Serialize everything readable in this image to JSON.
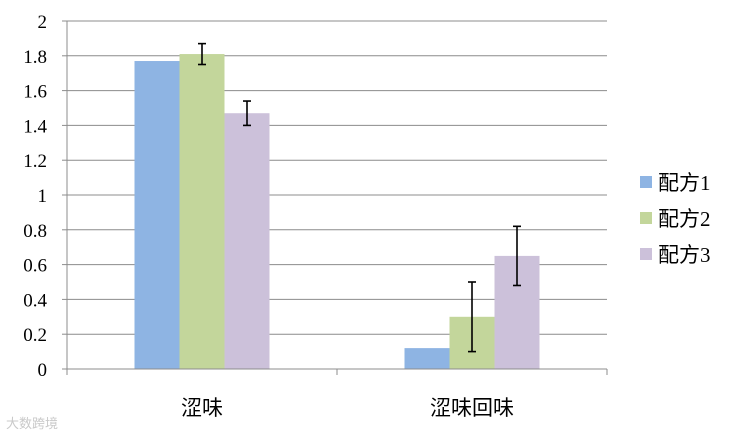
{
  "chart_data": {
    "type": "bar",
    "title": "",
    "xlabel": "",
    "ylabel": "",
    "categories": [
      "涩味",
      "涩味回味"
    ],
    "ylim": [
      0,
      2
    ],
    "yticks": [
      0,
      0.2,
      0.4,
      0.6,
      0.8,
      1,
      1.2,
      1.4,
      1.6,
      1.8,
      2
    ],
    "ytick_labels": [
      "0",
      "0.2",
      "0.4",
      "0.6",
      "0.8",
      "1",
      "1.2",
      "1.4",
      "1.6",
      "1.8",
      "2"
    ],
    "grid": true,
    "legend_position": "right",
    "error_bars": true,
    "series": [
      {
        "name": "配方1",
        "color": "#8eb4e3",
        "values": [
          1.77,
          0.12
        ],
        "errors": [
          null,
          null
        ]
      },
      {
        "name": "配方2",
        "color": "#c3d69b",
        "values": [
          1.81,
          0.3
        ],
        "errors": [
          0.06,
          0.2
        ]
      },
      {
        "name": "配方3",
        "color": "#ccc1da",
        "values": [
          1.47,
          0.65
        ],
        "errors": [
          0.07,
          0.17
        ]
      }
    ]
  },
  "watermark": "大数跨境"
}
